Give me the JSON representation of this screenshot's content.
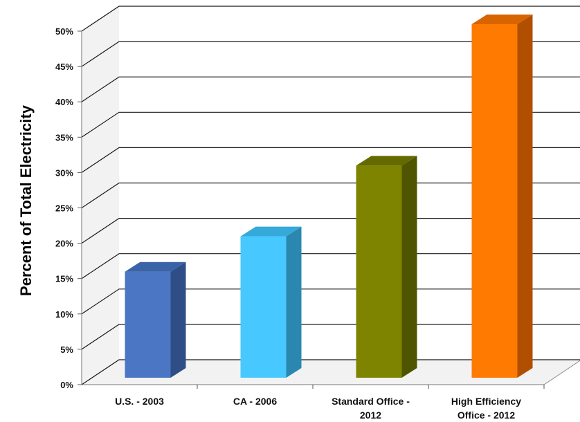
{
  "chart_data": {
    "type": "bar",
    "title": "",
    "xlabel": "",
    "ylabel": "Percent of Total Electricity",
    "ylim": [
      0,
      50
    ],
    "y_ticks": [
      "0%",
      "5%",
      "10%",
      "15%",
      "20%",
      "25%",
      "30%",
      "35%",
      "40%",
      "45%",
      "50%"
    ],
    "categories": [
      [
        "U.S. - 2003"
      ],
      [
        "CA - 2006"
      ],
      [
        "Standard Office -",
        "2012"
      ],
      [
        "High Efficiency",
        "Office - 2012"
      ]
    ],
    "values": [
      15,
      20,
      30,
      50
    ],
    "grid": true,
    "legend": "none",
    "style": "3d-column",
    "colors": [
      {
        "front": "#4A76C4",
        "side": "#2F4E86",
        "top": "#3A63A8"
      },
      {
        "front": "#47C9FF",
        "side": "#2A88B0",
        "top": "#35A9DA"
      },
      {
        "front": "#7E8400",
        "side": "#4F5400",
        "top": "#646A00"
      },
      {
        "front": "#FF7A00",
        "side": "#B04F00",
        "top": "#D86400"
      }
    ]
  }
}
